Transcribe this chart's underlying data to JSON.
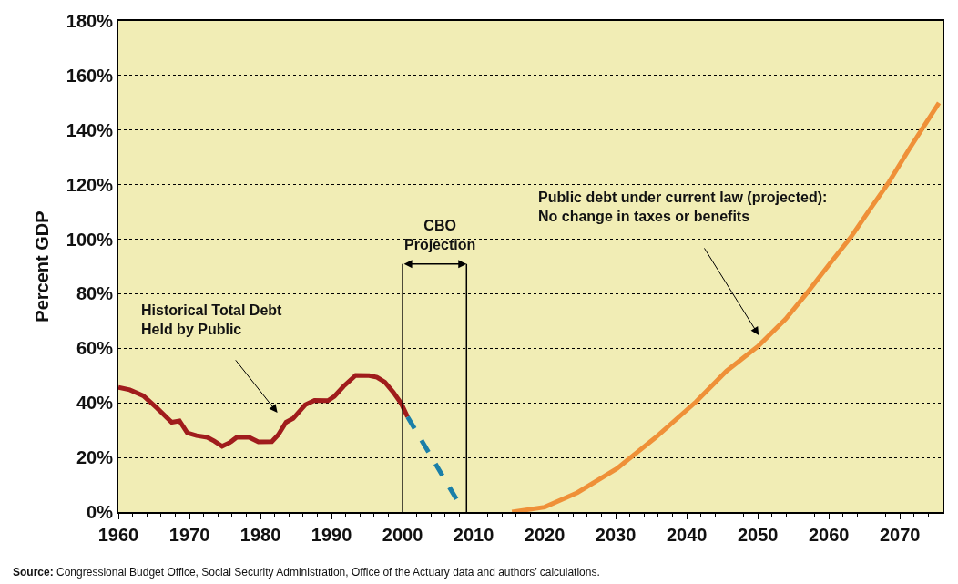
{
  "chart_data": {
    "type": "line",
    "ylabel": "Percent GDP",
    "xlim": [
      1960,
      2076
    ],
    "xticks": [
      1960,
      1970,
      1980,
      1990,
      2000,
      2010,
      2020,
      2030,
      2040,
      2050,
      2060,
      2070
    ],
    "ylim": [
      0,
      180
    ],
    "yticks": [
      {
        "value": 0,
        "label": "0%"
      },
      {
        "value": 20,
        "label": "20%"
      },
      {
        "value": 40,
        "label": "40%"
      },
      {
        "value": 60,
        "label": "60%"
      },
      {
        "value": 80,
        "label": "80%"
      },
      {
        "value": 100,
        "label": "100%"
      },
      {
        "value": 120,
        "label": "120%"
      },
      {
        "value": 140,
        "label": "140%"
      },
      {
        "value": 160,
        "label": "160%"
      },
      {
        "value": 180,
        "label": "180%"
      }
    ],
    "grid": "y",
    "series": [
      {
        "color": "#a01c1c",
        "line_style": "solid",
        "x": [
          1960,
          1961.6,
          1963.5,
          1965.4,
          1967.5,
          1968.6,
          1969.7,
          1971,
          1972.5,
          1973.5,
          1974.6,
          1975.7,
          1976.7,
          1978.4,
          1979.7,
          1981.6,
          1982.5,
          1983.6,
          1984.6,
          1986.3,
          1987.6,
          1989.5,
          1990.4,
          1991.7,
          1993.4,
          1995.3,
          1996.4,
          1997.5,
          1998.7,
          1999.8,
          2000.7
        ],
        "values": [
          45.7,
          44.8,
          42.6,
          38.2,
          32.9,
          33.4,
          29.0,
          28.0,
          27.4,
          26.0,
          24.1,
          25.5,
          27.5,
          27.4,
          25.7,
          25.8,
          28.3,
          32.9,
          34.3,
          39.3,
          40.9,
          40.8,
          42.4,
          46.1,
          50.1,
          50.0,
          49.4,
          47.6,
          43.9,
          39.8,
          34.9
        ]
      },
      {
        "color": "#1a7fa8",
        "line_style": "dashed",
        "x": [
          2000.7,
          2008.0
        ],
        "values": [
          34.9,
          2.9
        ]
      },
      {
        "color": "#ef9038",
        "line_style": "solid",
        "x": [
          2015.4,
          2020,
          2024.6,
          2030.2,
          2035.6,
          2041.3,
          2045.6,
          2050.1,
          2053.9,
          2056.9,
          2060.1,
          2063.0,
          2065.8,
          2068.5,
          2071.3,
          2075.5
        ],
        "values": [
          0,
          1.8,
          7.1,
          16.0,
          27.3,
          40.4,
          51.7,
          60.9,
          70.7,
          80.2,
          90.9,
          100.4,
          111.0,
          121.1,
          133.0,
          150.0
        ]
      }
    ],
    "ref_lines": [
      {
        "axis": "x",
        "value": 2000,
        "color": "#000000"
      },
      {
        "axis": "x",
        "value": 2009,
        "color": "#000000"
      }
    ],
    "annotations": [
      "CBO\nProjection",
      "Historical Total Debt\nHeld by Public",
      "Public debt under current law (projected):\nNo change in taxes or benefits",
      "Source: Congressional Budget Office, Social Security Administration, Office of the Actuary data and authors’ calculations."
    ]
  }
}
